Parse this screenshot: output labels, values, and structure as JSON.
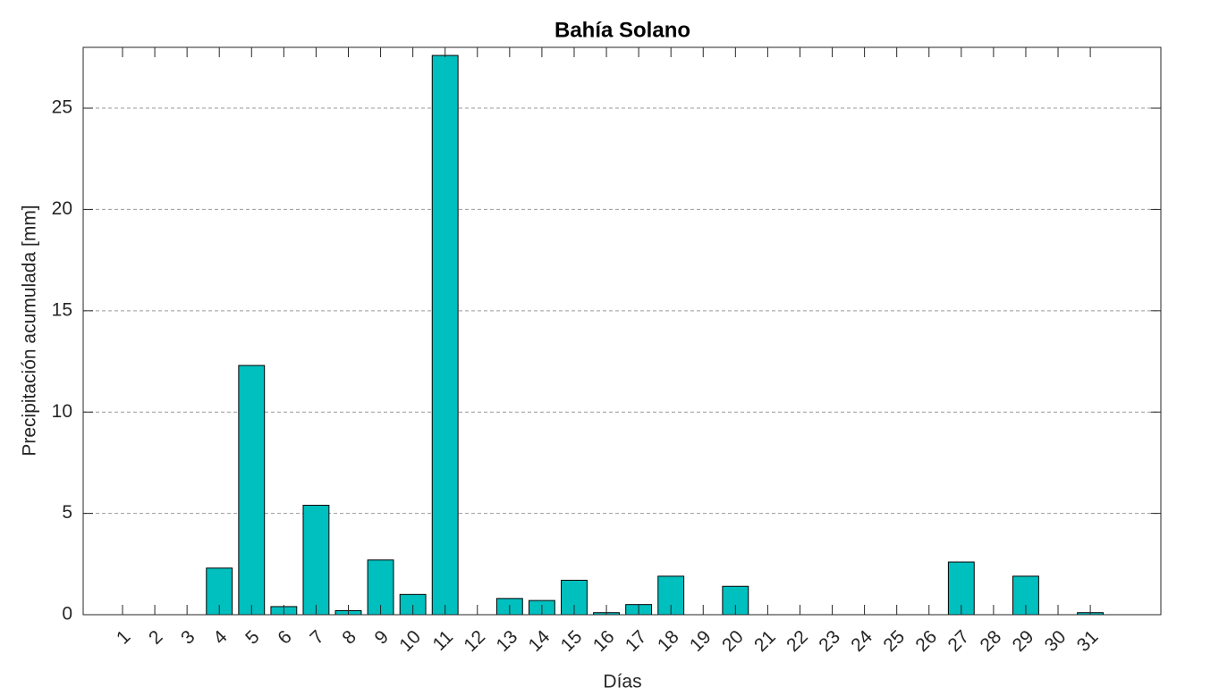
{
  "chart_data": {
    "type": "bar",
    "title": "Bahía Solano",
    "x_label": "Días",
    "y_label": "Precipitación acumulada [mm]",
    "categories": [
      "1",
      "2",
      "3",
      "4",
      "5",
      "6",
      "7",
      "8",
      "9",
      "10",
      "11",
      "12",
      "13",
      "14",
      "15",
      "16",
      "17",
      "18",
      "19",
      "20",
      "21",
      "22",
      "23",
      "24",
      "25",
      "26",
      "27",
      "28",
      "29",
      "30",
      "31"
    ],
    "values": [
      0,
      0,
      0,
      2.3,
      12.3,
      0.4,
      5.4,
      0.2,
      2.7,
      1.0,
      27.6,
      0,
      0.8,
      0.7,
      1.7,
      0.1,
      0.5,
      1.9,
      0,
      1.4,
      0,
      0,
      0,
      0,
      0,
      0,
      2.6,
      0,
      1.9,
      0,
      0.1
    ],
    "color": "#00bfbf",
    "ylim": [
      0,
      28
    ],
    "yticks": [
      0,
      5,
      10,
      15,
      20,
      25
    ],
    "grid": true
  }
}
